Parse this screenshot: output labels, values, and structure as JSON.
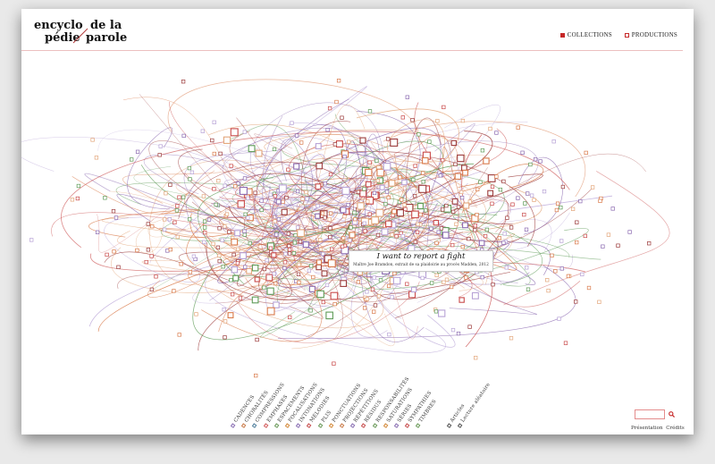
{
  "logo": {
    "line1a": "encyclo",
    "line2a": "pédie",
    "line1b": "de la",
    "line2b": "parole"
  },
  "nav": [
    {
      "label": "COLLECTIONS",
      "marker": "filled",
      "color": "#c62828"
    },
    {
      "label": "PRODUCTIONS",
      "marker": "outline",
      "color": "#c62828"
    }
  ],
  "tooltip": {
    "title": "I want to report a fight",
    "subtitle": "Maître Joe Bramdon, extrait de sa plaidoirie au procès Madden, 2012"
  },
  "categories": [
    {
      "label": "CADENCES",
      "color": "#8a6fb3"
    },
    {
      "label": "CHORALITÉS",
      "color": "#c97b4a"
    },
    {
      "label": "COMPRESSIONS",
      "color": "#4f7e9c"
    },
    {
      "label": "EMPHASES",
      "color": "#d35c5c"
    },
    {
      "label": "ESPACEMENTS",
      "color": "#6b9a5a"
    },
    {
      "label": "FOCALISATIONS",
      "color": "#d38a3a"
    },
    {
      "label": "INTONATIONS",
      "color": "#8a6fb3"
    },
    {
      "label": "MÉLODIES",
      "color": "#c74d4d"
    },
    {
      "label": "PLIS",
      "color": "#6b9a5a"
    },
    {
      "label": "PONCTUATIONS",
      "color": "#d38a3a"
    },
    {
      "label": "PROJECTIONS",
      "color": "#c97b4a"
    },
    {
      "label": "RÉPÉTITIONS",
      "color": "#8a6fb3"
    },
    {
      "label": "RÉSIDUS",
      "color": "#c74d4d"
    },
    {
      "label": "RESPONSABILITÉS",
      "color": "#6b9a5a"
    },
    {
      "label": "SATURATIONS",
      "color": "#d38a3a"
    },
    {
      "label": "SÉRIES",
      "color": "#8a6fb3"
    },
    {
      "label": "SYMPATHIES",
      "color": "#c74d4d"
    },
    {
      "label": "TIMBRES",
      "color": "#6b9a5a"
    }
  ],
  "extras": [
    {
      "label": "Articles",
      "color": "#555555"
    },
    {
      "label": "Lecture aléatoire",
      "color": "#555555"
    }
  ],
  "footer": {
    "presentation": "Présentation",
    "credits": "Crédits"
  },
  "palette": [
    "#d97a4a",
    "#c94a4a",
    "#8c6bb1",
    "#5e9b57",
    "#e3a67a",
    "#b7a2d6",
    "#9c3b3b"
  ]
}
